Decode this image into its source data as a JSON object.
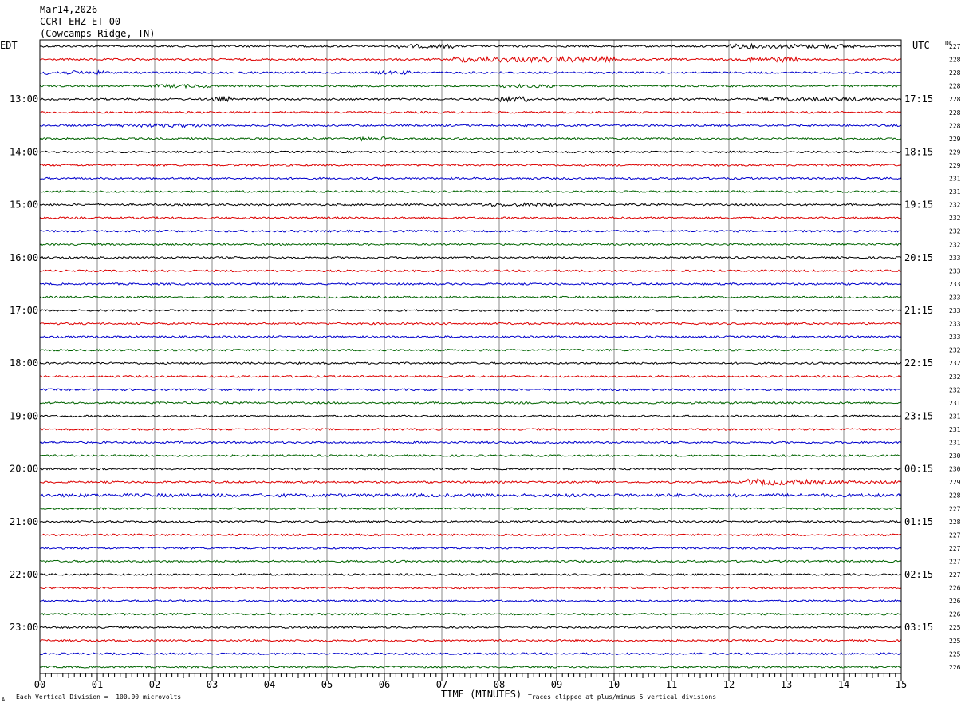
{
  "header": {
    "date": "Mar14,2026",
    "channel": "CCRT EHZ ET 00",
    "location": "(Cowcamps Ridge, TN)"
  },
  "footer": {
    "scale_note": "Each Vertical Division =  100.00 microvolts",
    "clip_note": "Traces clipped at plus/minus 5 vertical divisions",
    "corner_mark": "A"
  },
  "chart_data": {
    "type": "line",
    "title": "",
    "xlabel": "TIME (MINUTES)",
    "ylabel_left": "EDT",
    "ylabel_right": "UTC",
    "dc_label": "DC",
    "xlim": [
      0,
      15
    ],
    "x_tick_labels": [
      "00",
      "01",
      "02",
      "03",
      "04",
      "05",
      "06",
      "07",
      "08",
      "09",
      "10",
      "11",
      "12",
      "13",
      "14",
      "15"
    ],
    "left_hour_labels": [
      "13:00",
      "14:00",
      "15:00",
      "16:00",
      "17:00",
      "18:00",
      "19:00",
      "20:00",
      "21:00",
      "22:00",
      "23:00"
    ],
    "right_hour_labels": [
      "17:15",
      "18:15",
      "19:15",
      "20:15",
      "21:15",
      "22:15",
      "23:15",
      "00:15",
      "01:15",
      "02:15",
      "03:15"
    ],
    "trace_colors": [
      "#000000",
      "#dd0000",
      "#0000cc",
      "#006400"
    ],
    "dc_offsets": [
      "227",
      "228",
      "228",
      "228",
      "228",
      "228",
      "228",
      "229",
      "229",
      "229",
      "231",
      "231",
      "232",
      "232",
      "232",
      "232",
      "233",
      "233",
      "233",
      "233",
      "233",
      "233",
      "233",
      "232",
      "232",
      "232",
      "232",
      "231",
      "231",
      "231",
      "231",
      "230",
      "230",
      "229",
      "228",
      "227",
      "228",
      "227",
      "227",
      "227",
      "227",
      "226",
      "226",
      "226",
      "225",
      "225",
      "225",
      "226"
    ],
    "grid": true
  }
}
